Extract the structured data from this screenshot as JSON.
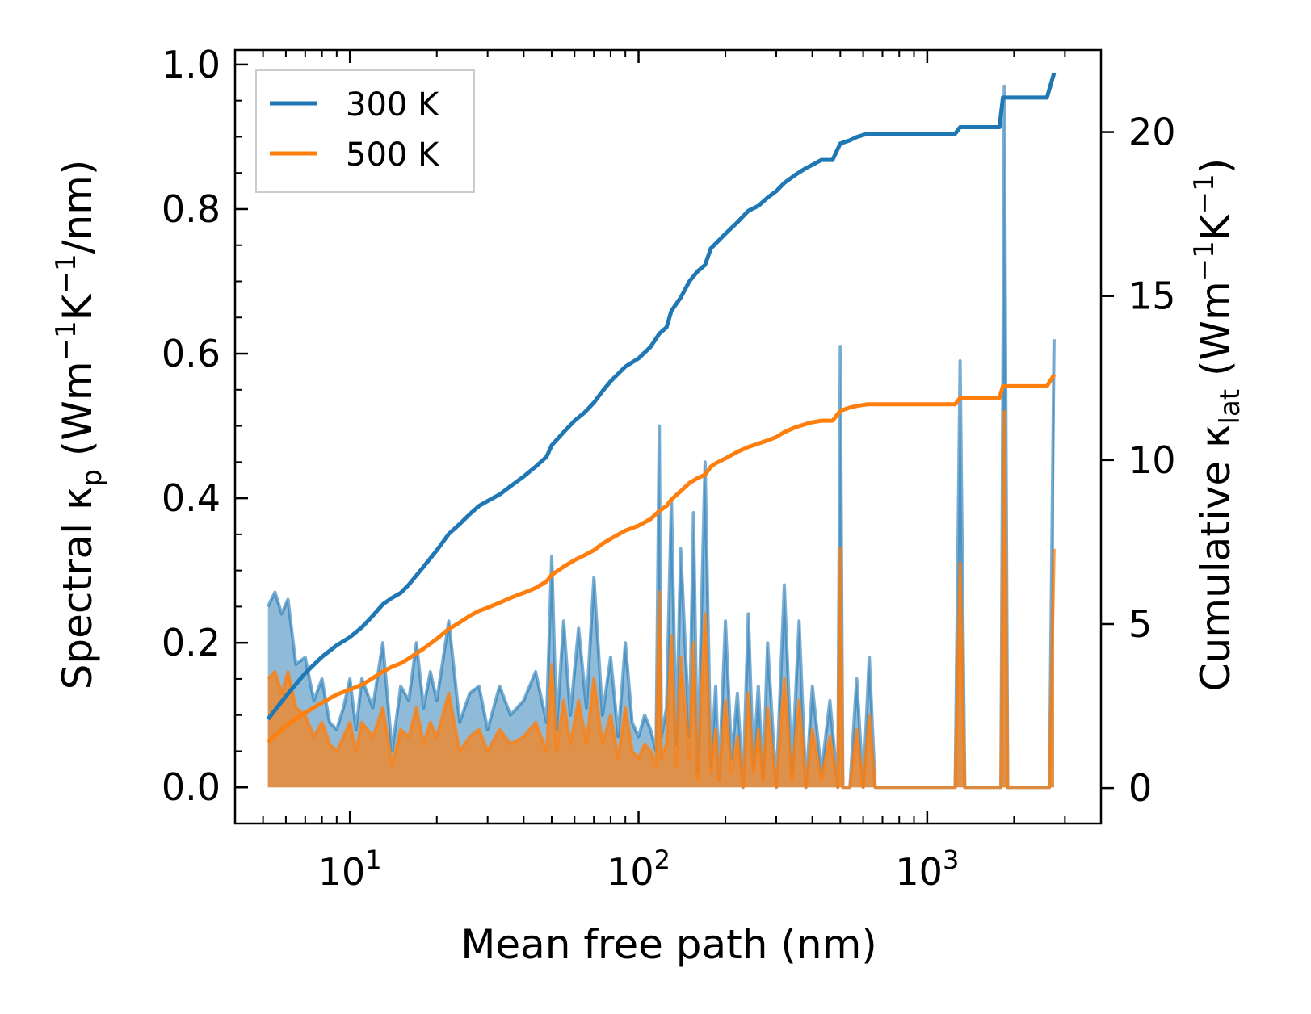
{
  "chart_data": {
    "type": "line",
    "title": "",
    "xlabel": "Mean free path (nm)",
    "ylabel_left": [
      "Spectral κ",
      "p",
      " (Wm",
      "−1",
      "K",
      "−1",
      "/nm)"
    ],
    "ylabel_right": [
      "Cumulative κ",
      "lat",
      " (Wm",
      "−1",
      "K",
      "−1",
      ")"
    ],
    "x_scale": "log",
    "xlim": [
      4,
      4000
    ],
    "ylim_left": [
      -0.05,
      1.02
    ],
    "ylim_right": [
      -1.08,
      22.5
    ],
    "x_ticks": [
      {
        "value": 10,
        "base": "10",
        "exp": "1"
      },
      {
        "value": 100,
        "base": "10",
        "exp": "2"
      },
      {
        "value": 1000,
        "base": "10",
        "exp": "3"
      }
    ],
    "y_ticks_left": [
      {
        "value": 0.0,
        "label": "0.0"
      },
      {
        "value": 0.2,
        "label": "0.2"
      },
      {
        "value": 0.4,
        "label": "0.4"
      },
      {
        "value": 0.6,
        "label": "0.6"
      },
      {
        "value": 0.8,
        "label": "0.8"
      },
      {
        "value": 1.0,
        "label": "1.0"
      }
    ],
    "y_ticks_right": [
      {
        "value": 0,
        "label": "0"
      },
      {
        "value": 5,
        "label": "5"
      },
      {
        "value": 10,
        "label": "10"
      },
      {
        "value": 15,
        "label": "15"
      },
      {
        "value": 20,
        "label": "20"
      }
    ],
    "legend": {
      "position": "upper-left",
      "entries": [
        "300 K",
        "500 K"
      ]
    },
    "series": [
      {
        "name": "300 K",
        "color": "#1f77b4",
        "spectral": {
          "x": [
            5.2,
            5.5,
            5.8,
            6.1,
            6.5,
            7.0,
            7.5,
            8.0,
            8.5,
            9.0,
            9.5,
            10.0,
            10.5,
            11.0,
            12.0,
            13.0,
            14.0,
            15.0,
            16.0,
            17.0,
            18.0,
            19.0,
            20.0,
            22.0,
            24.0,
            26.0,
            28.0,
            30.0,
            33.0,
            36.0,
            40.0,
            44.0,
            48.0,
            50.0,
            52.0,
            55.0,
            58.0,
            62.0,
            66.0,
            70.0,
            75.0,
            80.0,
            85.0,
            90.0,
            95.0,
            100.0,
            105.0,
            110.0,
            115.0,
            118.0,
            120.0,
            125.0,
            130.0,
            135.0,
            140.0,
            150.0,
            155.0,
            160.0,
            170.0,
            178.0,
            185.0,
            190.0,
            200.0,
            210.0,
            220.0,
            230.0,
            240.0,
            250.0,
            260.0,
            270.0,
            280.0,
            300.0,
            320.0,
            340.0,
            360.0,
            380.0,
            400.0,
            430.0,
            460.0,
            490.0,
            500.0,
            510.0,
            540.0,
            570.0,
            600.0,
            630.0,
            660.0,
            700.0,
            1200.0,
            1250.0,
            1300.0,
            1350.0,
            1700.0,
            1800.0,
            1850.0,
            1900.0,
            2500.0,
            2650.0,
            2750.0
          ],
          "y": [
            0.25,
            0.27,
            0.24,
            0.26,
            0.17,
            0.18,
            0.12,
            0.15,
            0.09,
            0.08,
            0.11,
            0.15,
            0.08,
            0.15,
            0.11,
            0.2,
            0.05,
            0.14,
            0.12,
            0.2,
            0.11,
            0.16,
            0.12,
            0.23,
            0.09,
            0.13,
            0.14,
            0.08,
            0.14,
            0.1,
            0.12,
            0.16,
            0.09,
            0.32,
            0.08,
            0.23,
            0.1,
            0.22,
            0.11,
            0.29,
            0.1,
            0.18,
            0.07,
            0.2,
            0.09,
            0.07,
            0.1,
            0.08,
            0.05,
            0.5,
            0.07,
            0.11,
            0.4,
            0.06,
            0.33,
            0.07,
            0.38,
            0.02,
            0.45,
            0.03,
            0.14,
            0.01,
            0.23,
            0.04,
            0.13,
            0.0,
            0.24,
            0.03,
            0.14,
            0.01,
            0.2,
            0.0,
            0.28,
            0.02,
            0.23,
            0.0,
            0.14,
            0.02,
            0.12,
            0.0,
            0.61,
            0.0,
            0.0,
            0.15,
            0.0,
            0.18,
            0.0,
            0.0,
            0.0,
            0.0,
            0.59,
            0.0,
            0.0,
            0.0,
            0.97,
            0.0,
            0.0,
            0.0,
            0.62
          ]
        },
        "cumulative": {
          "x": [
            5.2,
            6.0,
            7.0,
            8.0,
            9.0,
            10.0,
            11.0,
            12.0,
            13.0,
            14.0,
            15.0,
            16.0,
            18.0,
            20.0,
            22.0,
            24.0,
            26.0,
            28.0,
            30.0,
            33.0,
            36.0,
            40.0,
            44.0,
            48.0,
            50.0,
            55.0,
            60.0,
            65.0,
            70.0,
            75.0,
            80.0,
            90.0,
            100.0,
            110.0,
            118.0,
            125.0,
            130.0,
            140.0,
            150.0,
            160.0,
            170.0,
            178.0,
            185.0,
            200.0,
            220.0,
            240.0,
            260.0,
            280.0,
            300.0,
            320.0,
            350.0,
            380.0,
            400.0,
            430.0,
            470.0,
            500.0,
            540.0,
            570.0,
            620.0,
            660.0,
            1250.0,
            1300.0,
            1350.0,
            1780.0,
            1830.0,
            1880.0,
            2600.0,
            2750.0
          ],
          "y": [
            2.1,
            2.8,
            3.5,
            4.0,
            4.35,
            4.6,
            4.9,
            5.25,
            5.6,
            5.8,
            5.95,
            6.2,
            6.75,
            7.25,
            7.75,
            8.05,
            8.35,
            8.6,
            8.75,
            8.95,
            9.2,
            9.5,
            9.8,
            10.1,
            10.45,
            10.85,
            11.2,
            11.45,
            11.75,
            12.1,
            12.4,
            12.85,
            13.1,
            13.45,
            13.85,
            14.05,
            14.55,
            14.95,
            15.45,
            15.75,
            15.95,
            16.45,
            16.6,
            16.9,
            17.25,
            17.6,
            17.75,
            18.0,
            18.2,
            18.45,
            18.7,
            18.9,
            19.0,
            19.15,
            19.15,
            19.65,
            19.75,
            19.85,
            19.95,
            19.95,
            19.95,
            20.15,
            20.15,
            20.15,
            21.05,
            21.05,
            21.05,
            21.8
          ]
        }
      },
      {
        "name": "500 K",
        "color": "#ff7f0e",
        "spectral": {
          "x": [
            5.2,
            5.5,
            5.8,
            6.1,
            6.5,
            7.0,
            7.5,
            8.0,
            8.5,
            9.0,
            9.5,
            10.0,
            10.5,
            11.0,
            12.0,
            13.0,
            14.0,
            15.0,
            16.0,
            17.0,
            18.0,
            19.0,
            20.0,
            22.0,
            24.0,
            26.0,
            28.0,
            30.0,
            33.0,
            36.0,
            40.0,
            44.0,
            48.0,
            50.0,
            52.0,
            55.0,
            58.0,
            62.0,
            66.0,
            70.0,
            75.0,
            80.0,
            85.0,
            90.0,
            95.0,
            100.0,
            105.0,
            110.0,
            115.0,
            118.0,
            120.0,
            125.0,
            130.0,
            135.0,
            140.0,
            150.0,
            155.0,
            160.0,
            170.0,
            178.0,
            185.0,
            190.0,
            200.0,
            210.0,
            220.0,
            230.0,
            240.0,
            250.0,
            260.0,
            270.0,
            280.0,
            300.0,
            320.0,
            340.0,
            360.0,
            380.0,
            400.0,
            430.0,
            460.0,
            490.0,
            500.0,
            510.0,
            540.0,
            570.0,
            600.0,
            630.0,
            660.0,
            700.0,
            1200.0,
            1250.0,
            1300.0,
            1350.0,
            1700.0,
            1800.0,
            1850.0,
            1900.0,
            2500.0,
            2650.0,
            2750.0
          ],
          "y": [
            0.15,
            0.16,
            0.13,
            0.16,
            0.11,
            0.1,
            0.07,
            0.09,
            0.06,
            0.05,
            0.07,
            0.09,
            0.05,
            0.09,
            0.07,
            0.11,
            0.03,
            0.08,
            0.07,
            0.11,
            0.06,
            0.09,
            0.07,
            0.13,
            0.05,
            0.07,
            0.08,
            0.05,
            0.08,
            0.06,
            0.07,
            0.09,
            0.05,
            0.17,
            0.05,
            0.12,
            0.06,
            0.12,
            0.06,
            0.15,
            0.06,
            0.1,
            0.04,
            0.11,
            0.05,
            0.04,
            0.06,
            0.05,
            0.03,
            0.27,
            0.04,
            0.06,
            0.21,
            0.03,
            0.18,
            0.04,
            0.2,
            0.01,
            0.24,
            0.02,
            0.08,
            0.01,
            0.12,
            0.02,
            0.07,
            0.0,
            0.13,
            0.02,
            0.08,
            0.01,
            0.11,
            0.0,
            0.15,
            0.01,
            0.12,
            0.0,
            0.08,
            0.01,
            0.07,
            0.0,
            0.33,
            0.0,
            0.0,
            0.08,
            0.0,
            0.1,
            0.0,
            0.0,
            0.0,
            0.0,
            0.31,
            0.0,
            0.0,
            0.0,
            0.52,
            0.0,
            0.0,
            0.0,
            0.33
          ]
        },
        "cumulative": {
          "x": [
            5.2,
            6.0,
            7.0,
            8.0,
            9.0,
            10.0,
            11.0,
            12.0,
            13.0,
            14.0,
            15.0,
            16.0,
            18.0,
            20.0,
            22.0,
            24.0,
            26.0,
            28.0,
            30.0,
            33.0,
            36.0,
            40.0,
            44.0,
            48.0,
            50.0,
            55.0,
            60.0,
            65.0,
            70.0,
            75.0,
            80.0,
            90.0,
            100.0,
            110.0,
            118.0,
            125.0,
            130.0,
            140.0,
            150.0,
            160.0,
            170.0,
            178.0,
            185.0,
            200.0,
            220.0,
            240.0,
            260.0,
            280.0,
            300.0,
            320.0,
            350.0,
            380.0,
            400.0,
            430.0,
            470.0,
            500.0,
            540.0,
            570.0,
            620.0,
            660.0,
            1250.0,
            1300.0,
            1350.0,
            1780.0,
            1830.0,
            1880.0,
            2600.0,
            2750.0
          ],
          "y": [
            1.4,
            1.9,
            2.3,
            2.6,
            2.85,
            3.0,
            3.15,
            3.35,
            3.55,
            3.7,
            3.8,
            3.95,
            4.25,
            4.55,
            4.85,
            5.05,
            5.25,
            5.4,
            5.5,
            5.65,
            5.8,
            5.95,
            6.1,
            6.3,
            6.5,
            6.75,
            6.95,
            7.1,
            7.25,
            7.45,
            7.6,
            7.85,
            8.0,
            8.2,
            8.45,
            8.6,
            8.8,
            9.05,
            9.3,
            9.45,
            9.55,
            9.8,
            9.9,
            10.05,
            10.25,
            10.4,
            10.5,
            10.6,
            10.7,
            10.85,
            11.0,
            11.1,
            11.15,
            11.2,
            11.2,
            11.5,
            11.6,
            11.65,
            11.7,
            11.7,
            11.7,
            11.9,
            11.9,
            11.9,
            12.25,
            12.25,
            12.25,
            12.6
          ]
        }
      }
    ]
  }
}
